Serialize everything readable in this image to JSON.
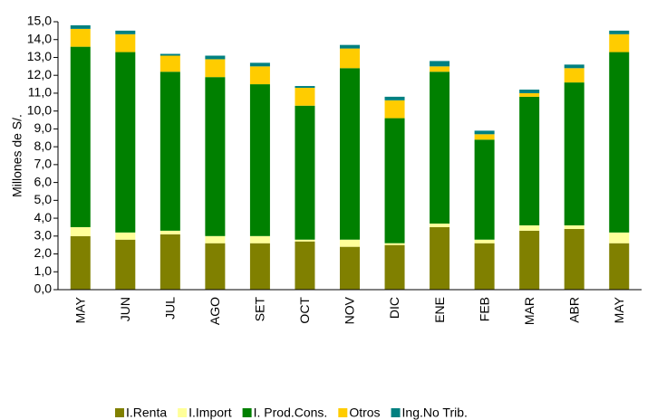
{
  "chart_data": {
    "type": "stacked_bar",
    "ylabel": "Millones de S/.",
    "categories": [
      "MAY",
      "JUN",
      "JUL",
      "AGO",
      "SET",
      "OCT",
      "NOV",
      "DIC",
      "ENE",
      "FEB",
      "MAR",
      "ABR",
      "MAY"
    ],
    "series": [
      {
        "name": "I.Renta",
        "color": "#808000",
        "values": [
          3.0,
          2.8,
          3.1,
          2.6,
          2.6,
          2.7,
          2.4,
          2.5,
          3.5,
          2.6,
          3.3,
          3.4,
          2.6
        ]
      },
      {
        "name": "I.Import",
        "color": "#ffff99",
        "values": [
          0.5,
          0.4,
          0.2,
          0.4,
          0.4,
          0.1,
          0.4,
          0.1,
          0.2,
          0.2,
          0.3,
          0.2,
          0.6
        ]
      },
      {
        "name": "I. Prod.Cons.",
        "color": "#008000",
        "values": [
          10.1,
          10.1,
          8.9,
          8.9,
          8.5,
          7.5,
          9.6,
          7.0,
          8.5,
          5.6,
          7.2,
          8.0,
          10.1
        ]
      },
      {
        "name": "Otros",
        "color": "#ffcc00",
        "values": [
          1.0,
          1.0,
          0.9,
          1.0,
          1.0,
          1.0,
          1.1,
          1.0,
          0.3,
          0.3,
          0.2,
          0.8,
          1.0
        ]
      },
      {
        "name": "Ing.No Trib.",
        "color": "#008080",
        "values": [
          0.2,
          0.2,
          0.1,
          0.2,
          0.2,
          0.1,
          0.2,
          0.2,
          0.3,
          0.2,
          0.2,
          0.2,
          0.2
        ]
      }
    ],
    "ylim": [
      0,
      15
    ],
    "yticks": [
      {
        "value": 0,
        "label": "0,0"
      },
      {
        "value": 1,
        "label": "1,0"
      },
      {
        "value": 2,
        "label": "2,0"
      },
      {
        "value": 3,
        "label": "3,0"
      },
      {
        "value": 4,
        "label": "4,0"
      },
      {
        "value": 5,
        "label": "5,0"
      },
      {
        "value": 6,
        "label": "6,0"
      },
      {
        "value": 7,
        "label": "7,0"
      },
      {
        "value": 8,
        "label": "8,0"
      },
      {
        "value": 9,
        "label": "9,0"
      },
      {
        "value": 10,
        "label": "10,0"
      },
      {
        "value": 11,
        "label": "11,0"
      },
      {
        "value": 12,
        "label": "12,0"
      },
      {
        "value": 13,
        "label": "13,0"
      },
      {
        "value": 14,
        "label": "14,0"
      },
      {
        "value": 15,
        "label": "15,0"
      }
    ],
    "legend": "bottom"
  }
}
